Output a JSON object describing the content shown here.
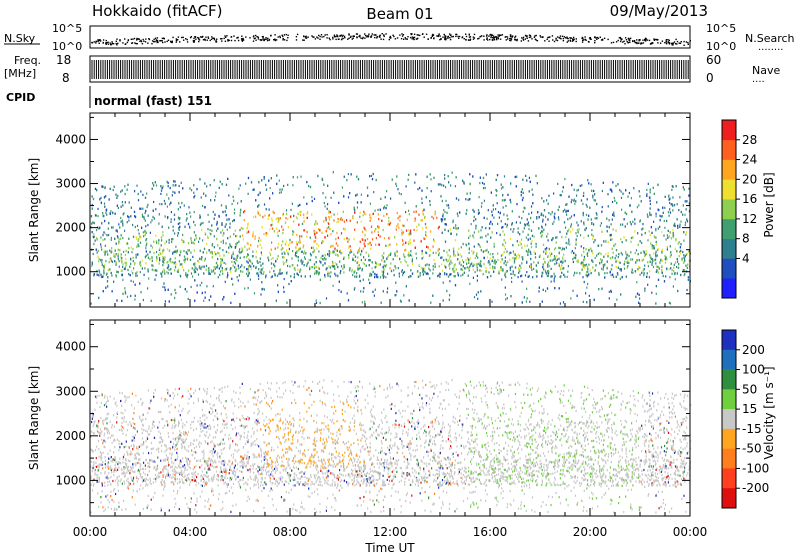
{
  "header": {
    "station": "Hokkaido (fitACF)",
    "beam": "Beam 01",
    "date": "09/May/2013"
  },
  "small_panels": {
    "nsky_label": "N.Sky",
    "nsearch_label": "N.Search",
    "nsearch_dots": "........",
    "exp_top": "10^5",
    "exp_bottom": "10^0",
    "freq_label_1": "Freq.",
    "freq_label_2": "[MHz]",
    "freq_ticks": [
      "18",
      "8"
    ],
    "nave_label": "Nave",
    "nave_dots": "....",
    "nave_ticks": [
      "60",
      "0"
    ],
    "cpid_label": "CPID",
    "cpid_text": "normal (fast) 151"
  },
  "colors": {
    "power": [
      "#1f1fff",
      "#1f4fbf",
      "#2e7f8f",
      "#3f9f6f",
      "#8fcf4f",
      "#efdf2f",
      "#ffa51f",
      "#ff5f1f",
      "#ef1f1f"
    ],
    "velocity": [
      "#1f2fbf",
      "#1f6fbf",
      "#2f8f3f",
      "#6fcf3f",
      "#c8c8c8",
      "#ffa51f",
      "#ff7f1f",
      "#ff3f1f",
      "#df0f0f"
    ]
  },
  "chart_data": [
    {
      "type": "heatmap",
      "name": "power",
      "xlabel": "",
      "ylabel": "Slant Range [km]",
      "x_ticks": [
        "00:00",
        "04:00",
        "08:00",
        "12:00",
        "16:00",
        "20:00",
        "00:00"
      ],
      "x_range_hours": [
        0,
        24
      ],
      "y_ticks": [
        1000,
        2000,
        3000,
        4000
      ],
      "y_range_km": [
        200,
        4600
      ],
      "colorbar_label": "Power [dB]",
      "colorbar_ticks": [
        "28",
        "24",
        "20",
        "16",
        "12",
        "8",
        "4"
      ],
      "colorbar_range": [
        0,
        32
      ],
      "scatter_bands_km": [
        [
          700,
          1500
        ],
        [
          1500,
          2500
        ],
        [
          2500,
          3300
        ]
      ]
    },
    {
      "type": "heatmap",
      "name": "velocity",
      "xlabel": "Time UT",
      "ylabel": "Slant Range [km]",
      "x_ticks": [
        "00:00",
        "04:00",
        "08:00",
        "12:00",
        "16:00",
        "20:00",
        "00:00"
      ],
      "x_range_hours": [
        0,
        24
      ],
      "y_ticks": [
        1000,
        2000,
        3000,
        4000
      ],
      "y_range_km": [
        200,
        4600
      ],
      "colorbar_label": "Velocity [m s⁻¹]",
      "colorbar_ticks": [
        "200",
        "100",
        "50",
        "15",
        "-15",
        "-50",
        "-100",
        "-200"
      ]
    }
  ]
}
